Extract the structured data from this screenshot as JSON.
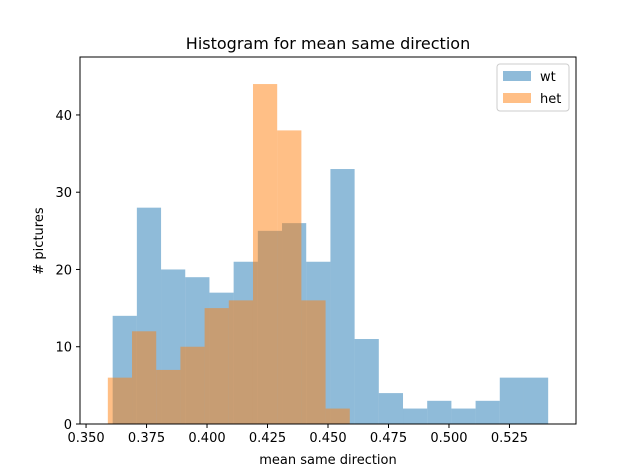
{
  "chart_data": {
    "type": "bar",
    "title": "Histogram for mean same direction",
    "xlabel": "mean same direction",
    "ylabel": "# pictures",
    "xlim": [
      0.3475,
      0.5525
    ],
    "ylim": [
      0,
      47.5
    ],
    "x_ticks": [
      0.35,
      0.375,
      0.4,
      0.425,
      0.45,
      0.475,
      0.5,
      0.525
    ],
    "x_tick_labels": [
      "0.350",
      "0.375",
      "0.400",
      "0.425",
      "0.450",
      "0.475",
      "0.500",
      "0.525"
    ],
    "y_ticks": [
      0,
      10,
      20,
      30,
      40
    ],
    "y_tick_labels": [
      "0",
      "10",
      "20",
      "30",
      "40"
    ],
    "grid": false,
    "legend_position": "top-right",
    "series": [
      {
        "name": "wt",
        "color": "#1f77b4",
        "opacity": 0.5,
        "bin_edges": [
          0.361,
          0.371,
          0.381,
          0.391,
          0.401,
          0.411,
          0.421,
          0.431,
          0.441,
          0.451,
          0.461,
          0.471,
          0.481,
          0.491,
          0.501,
          0.511,
          0.521,
          0.531,
          0.541
        ],
        "counts": [
          14,
          28,
          20,
          19,
          17,
          21,
          25,
          26,
          21,
          33,
          11,
          4,
          2,
          3,
          2,
          3,
          6,
          6
        ]
      },
      {
        "name": "het",
        "color": "#ff7f0e",
        "opacity": 0.5,
        "bin_edges": [
          0.359,
          0.369,
          0.379,
          0.389,
          0.399,
          0.409,
          0.419,
          0.429,
          0.439,
          0.449,
          0.459
        ],
        "counts": [
          6,
          12,
          7,
          10,
          15,
          16,
          44,
          38,
          16,
          2
        ]
      }
    ]
  }
}
